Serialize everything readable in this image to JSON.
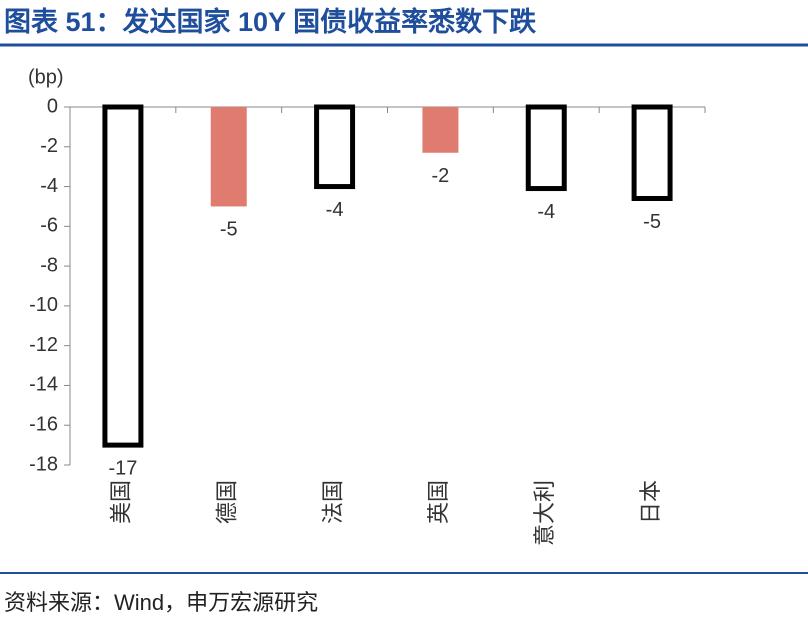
{
  "chart_data": {
    "type": "bar",
    "title": "图表 51：发达国家 10Y 国债收益率悉数下跌",
    "y_label": "(bp)",
    "source": "资料来源：Wind，申万宏源研究",
    "categories": [
      "美国",
      "德国",
      "法国",
      "英国",
      "意大利",
      "日本"
    ],
    "values": [
      -17,
      -5,
      -4,
      -2.3,
      -4.1,
      -4.6
    ],
    "value_labels": [
      "-17",
      "-5",
      "-4",
      "-2",
      "-4",
      "-5"
    ],
    "colors": [
      "#ffffff",
      "#e07b6f",
      "#ffffff",
      "#e07b6f",
      "#ffffff",
      "#ffffff"
    ],
    "edge_colors": [
      "#000000",
      null,
      "#000000",
      null,
      "#000000",
      "#000000"
    ],
    "ylim": [
      -18,
      0
    ],
    "yticks": [
      0,
      -2,
      -4,
      -6,
      -8,
      -10,
      -12,
      -14,
      -16,
      -18
    ]
  }
}
